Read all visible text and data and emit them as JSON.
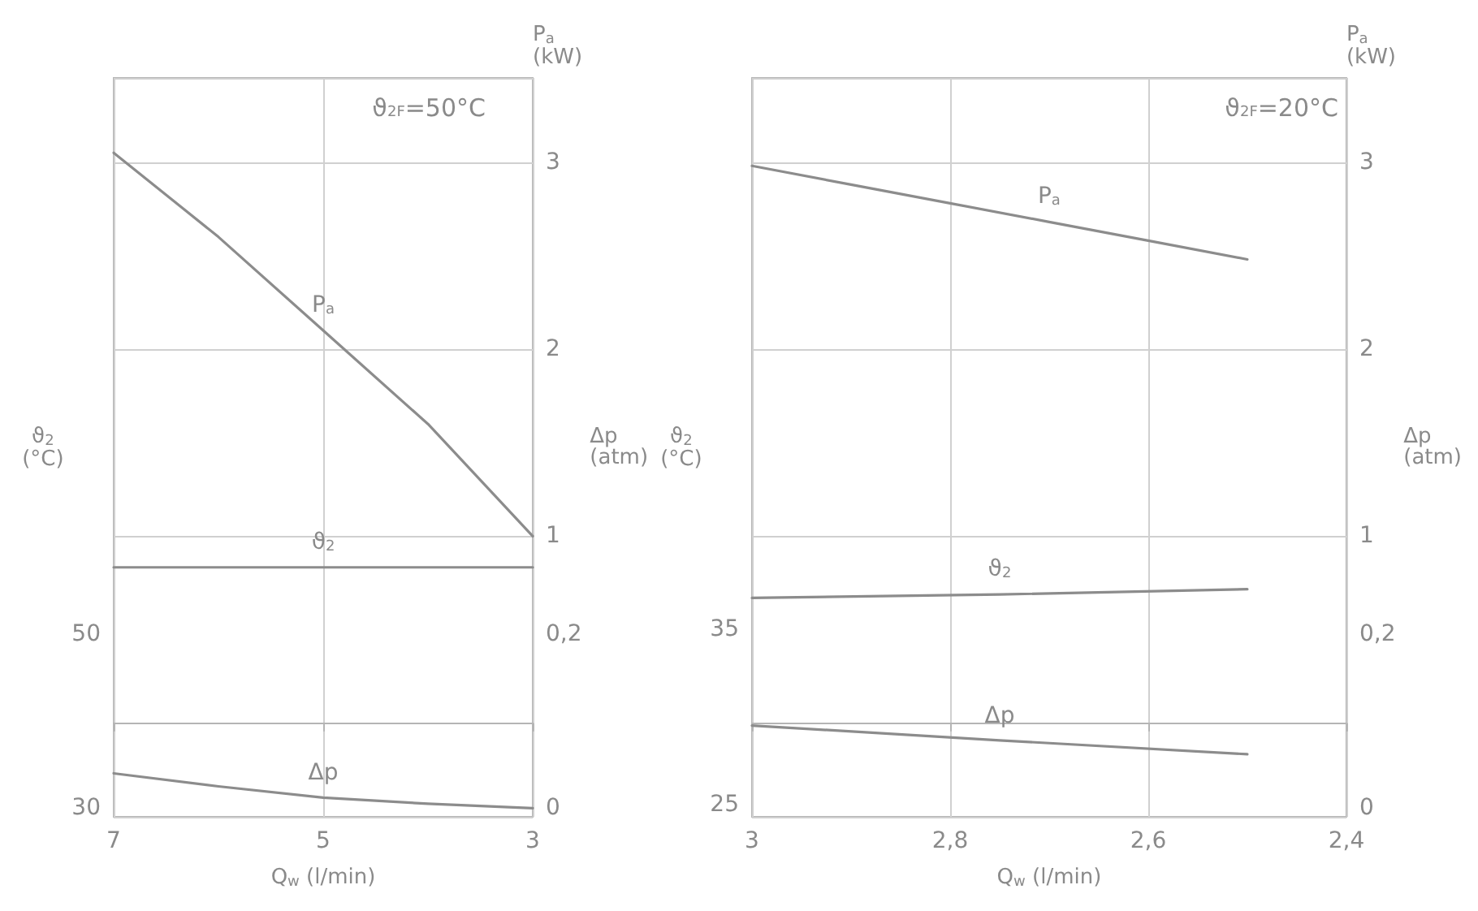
{
  "chart_data": [
    {
      "type": "line",
      "title": "ϑ$_{2F}$=50°C",
      "xlabel": "Q$_{w}$ (l/min)",
      "ylabel": "ϑ$_{2}$ (°C)",
      "y2label": "P$_{a}$ (kW)",
      "y3label": "Δp (atm)",
      "xlim": [
        7,
        3
      ],
      "xticks": [
        7,
        5,
        3
      ],
      "ylim": [
        29,
        114
      ],
      "yticks": [
        30,
        50
      ],
      "y2lim": [
        -0.5,
        3.45
      ],
      "y2ticks": [
        1,
        2,
        3
      ],
      "y3lim": [
        -0.01,
        0.84
      ],
      "y3ticks": [
        0,
        {
          "value": 0.2,
          "label": "0,2"
        }
      ],
      "grid": true,
      "marker": "none",
      "line_style": "solid",
      "series": [
        {
          "name": "P$_{a}$",
          "color": "#8c8c8c",
          "axis": "y2",
          "x": [
            7,
            6,
            5,
            4,
            3
          ],
          "values": [
            3.05,
            2.6,
            2.1,
            1.6,
            1.0
          ]
        },
        {
          "name": "ϑ$_{2}$",
          "color": "#8c8c8c",
          "axis": "y",
          "x": [
            7,
            5,
            3
          ],
          "values": [
            57.7,
            57.7,
            57.7
          ]
        },
        {
          "name": "Δp",
          "color": "#8c8c8c",
          "axis": "y3",
          "x": [
            7,
            6,
            5,
            4,
            3
          ],
          "values": [
            0.04,
            0.025,
            0.012,
            0.005,
            0.0
          ]
        }
      ]
    },
    {
      "type": "line",
      "title": "ϑ$_{2F}$=20°C",
      "xlabel": "Q$_{w}$ (l/min)",
      "ylabel": "ϑ$_{2}$ (°C)",
      "y2label": "P$_{a}$ (kW)",
      "y3label": "Δp (atm)",
      "xlim": [
        3,
        2.4
      ],
      "xticks": [
        3,
        {
          "value": 2.8,
          "label": "2,8"
        },
        {
          "value": 2.6,
          "label": "2,6"
        },
        {
          "value": 2.4,
          "label": "2,4"
        }
      ],
      "ylim": [
        24.3,
        66.5
      ],
      "yticks": [
        25,
        35
      ],
      "y2lim": [
        -0.5,
        3.45
      ],
      "y2ticks": [
        1,
        2,
        3
      ],
      "y3lim": [
        -0.01,
        0.84
      ],
      "y3ticks": [
        0,
        {
          "value": 0.2,
          "label": "0,2"
        }
      ],
      "grid": true,
      "marker": "none",
      "line_style": "solid",
      "series": [
        {
          "name": "P$_{a}$",
          "color": "#8c8c8c",
          "axis": "y2",
          "x": [
            3,
            2.9,
            2.8,
            2.7,
            2.6,
            2.5
          ],
          "values": [
            2.98,
            2.88,
            2.78,
            2.68,
            2.58,
            2.48
          ]
        },
        {
          "name": "ϑ$_{2}$",
          "color": "#8c8c8c",
          "axis": "y",
          "x": [
            3,
            2.75,
            2.5
          ],
          "values": [
            36.8,
            37.0,
            37.3
          ]
        },
        {
          "name": "Δp",
          "color": "#8c8c8c",
          "axis": "y3",
          "x": [
            3,
            2.75,
            2.5
          ],
          "values": [
            0.095,
            0.078,
            0.062
          ]
        }
      ]
    }
  ]
}
